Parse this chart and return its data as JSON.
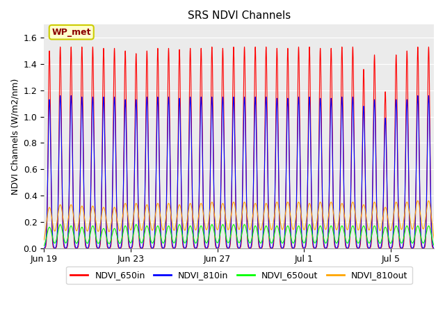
{
  "title": "SRS NDVI Channels",
  "ylabel": "NDVI Channels (W/m2/nm)",
  "annotation": "WP_met",
  "ylim": [
    0.0,
    1.7
  ],
  "yticks": [
    0.0,
    0.2,
    0.4,
    0.6,
    0.8,
    1.0,
    1.2,
    1.4,
    1.6
  ],
  "series": [
    "NDVI_650in",
    "NDVI_810in",
    "NDVI_650out",
    "NDVI_810out"
  ],
  "colors": [
    "red",
    "blue",
    "lime",
    "orange"
  ],
  "background_color": "#ebebeb",
  "n_peaks": 36,
  "total_days": 18.0,
  "peak_heights_650in": [
    1.5,
    1.53,
    1.53,
    1.53,
    1.53,
    1.52,
    1.52,
    1.5,
    1.48,
    1.5,
    1.52,
    1.52,
    1.51,
    1.52,
    1.52,
    1.53,
    1.52,
    1.53,
    1.53,
    1.53,
    1.53,
    1.52,
    1.52,
    1.53,
    1.53,
    1.52,
    1.52,
    1.53,
    1.53,
    1.36,
    1.47,
    1.19,
    1.47,
    1.5,
    1.53,
    1.53
  ],
  "peak_heights_810in": [
    1.13,
    1.16,
    1.16,
    1.15,
    1.15,
    1.15,
    1.15,
    1.13,
    1.13,
    1.15,
    1.15,
    1.15,
    1.14,
    1.15,
    1.15,
    1.15,
    1.15,
    1.15,
    1.15,
    1.15,
    1.15,
    1.14,
    1.14,
    1.15,
    1.15,
    1.14,
    1.14,
    1.15,
    1.15,
    1.08,
    1.13,
    0.99,
    1.13,
    1.13,
    1.16,
    1.16
  ],
  "peak_heights_650out": [
    0.16,
    0.18,
    0.17,
    0.16,
    0.17,
    0.15,
    0.15,
    0.17,
    0.18,
    0.17,
    0.17,
    0.17,
    0.18,
    0.17,
    0.17,
    0.18,
    0.18,
    0.18,
    0.18,
    0.17,
    0.17,
    0.17,
    0.17,
    0.17,
    0.18,
    0.17,
    0.17,
    0.17,
    0.17,
    0.17,
    0.17,
    0.16,
    0.17,
    0.17,
    0.17,
    0.17
  ],
  "peak_heights_810out": [
    0.31,
    0.33,
    0.33,
    0.32,
    0.32,
    0.31,
    0.31,
    0.34,
    0.34,
    0.33,
    0.34,
    0.34,
    0.33,
    0.34,
    0.34,
    0.35,
    0.34,
    0.35,
    0.35,
    0.34,
    0.34,
    0.35,
    0.35,
    0.35,
    0.34,
    0.35,
    0.35,
    0.34,
    0.35,
    0.33,
    0.35,
    0.31,
    0.35,
    0.35,
    0.36,
    0.36
  ],
  "xtick_positions": [
    0,
    4,
    8,
    12,
    16
  ],
  "xtick_labels": [
    "Jun 19",
    "Jun 23",
    "Jun 27",
    "Jul 1",
    "Jul 5"
  ]
}
